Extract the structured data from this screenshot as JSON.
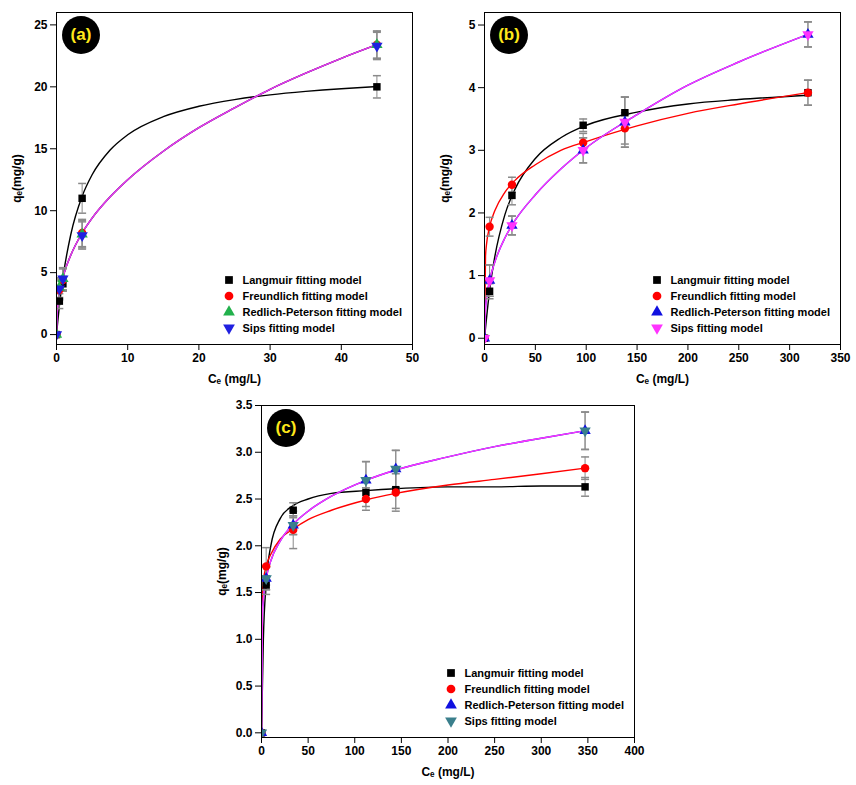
{
  "chart_data": [
    {
      "type": "scatter",
      "title": "(a)",
      "x_label": "Cₑ (mg/L)",
      "y_label": "qₑ(mg/g)",
      "xlim": [
        0,
        50
      ],
      "xticks": [
        0,
        10,
        20,
        30,
        40,
        50
      ],
      "ylim": [
        -0.8,
        26
      ],
      "yticks": [
        0,
        5,
        10,
        15,
        20,
        25
      ],
      "legend": "lower right",
      "series": [
        {
          "name": "Langmuir fitting model",
          "color": "#000000",
          "marker": "square",
          "x": [
            0,
            0.4,
            0.9,
            3.6,
            45
          ],
          "values": [
            0,
            2.7,
            4.1,
            11.0,
            20.0
          ],
          "error": [
            0,
            0.6,
            0.6,
            1.2,
            0.9
          ],
          "curve": {
            "color": "#000000",
            "x": [
              0,
              0.5,
              1,
              2,
              3.6,
              5,
              7.5,
              10,
              15,
              20,
              25,
              30,
              35,
              40,
              45
            ],
            "values": [
              0,
              2.8,
              4.96,
              8.06,
              11.16,
              12.9,
              14.88,
              16.13,
              17.59,
              18.43,
              18.97,
              19.35,
              19.63,
              19.85,
              20.02
            ]
          }
        },
        {
          "name": "Freundlich fitting model",
          "color": "#ff0000",
          "marker": "circle",
          "x": [
            0,
            0.4,
            0.9,
            3.6,
            45
          ],
          "values": [
            0,
            3.6,
            4.4,
            8.2,
            23.4
          ],
          "error": [
            0,
            0.8,
            0.9,
            1.1,
            1.1
          ],
          "curve": {
            "color": "#ff0000",
            "x": [
              0,
              0.1,
              0.5,
              1,
              2,
              3.6,
              5,
              7.5,
              10,
              15,
              20,
              25,
              30,
              35,
              40,
              45
            ],
            "values": [
              0,
              1.86,
              3.62,
              4.82,
              6.4,
              8.2,
              9.4,
              11.1,
              12.5,
              14.8,
              16.7,
              18.3,
              19.8,
              21.1,
              22.3,
              23.4
            ]
          }
        },
        {
          "name": "Redlich-Peterson fitting model",
          "color": "#22b14c",
          "marker": "triangle",
          "x": [
            0,
            0.4,
            0.9,
            3.6,
            45
          ],
          "values": [
            0,
            3.8,
            4.5,
            8.1,
            23.4
          ],
          "error": [
            0,
            0.8,
            0.9,
            1.1,
            1.1
          ],
          "curve": {
            "color": "#2020e0",
            "x": [
              0,
              0.1,
              0.5,
              1,
              2,
              3.6,
              5,
              7.5,
              10,
              15,
              20,
              25,
              30,
              35,
              40,
              45
            ],
            "values": [
              0,
              1.86,
              3.62,
              4.82,
              6.4,
              8.2,
              9.4,
              11.1,
              12.5,
              14.8,
              16.7,
              18.3,
              19.8,
              21.1,
              22.3,
              23.4
            ]
          }
        },
        {
          "name": "Sips fitting model",
          "color": "#2020e0",
          "marker": "triangle-down",
          "x": [
            0,
            0.4,
            0.9,
            3.6,
            45
          ],
          "values": [
            0,
            3.7,
            4.5,
            8.0,
            23.3
          ],
          "error": [
            0,
            0.8,
            0.9,
            1.1,
            1.1
          ],
          "curve": {
            "color": "#e83de8",
            "x": [
              0,
              0.1,
              0.5,
              1,
              2,
              3.6,
              5,
              7.5,
              10,
              15,
              20,
              25,
              30,
              35,
              40,
              45
            ],
            "values": [
              0,
              1.86,
              3.62,
              4.82,
              6.4,
              8.2,
              9.4,
              11.1,
              12.5,
              14.8,
              16.7,
              18.3,
              19.8,
              21.1,
              22.3,
              23.4
            ]
          }
        }
      ]
    },
    {
      "type": "scatter",
      "title": "(b)",
      "x_label": "Cₑ (mg/L)",
      "y_label": "qₑ(mg/g)",
      "xlim": [
        0,
        350
      ],
      "xticks": [
        0,
        50,
        100,
        150,
        200,
        250,
        300,
        350
      ],
      "ylim": [
        -0.1,
        5.2
      ],
      "yticks": [
        0,
        1,
        2,
        3,
        4,
        5
      ],
      "legend": "lower right",
      "series": [
        {
          "name": "Langmuir fitting model",
          "color": "#000000",
          "marker": "square",
          "x": [
            0,
            5,
            27,
            97,
            138,
            318
          ],
          "values": [
            0,
            0.75,
            2.28,
            3.4,
            3.6,
            3.92
          ],
          "error": [
            0,
            0.12,
            0.15,
            0.1,
            0.25,
            0.2
          ],
          "curve": {
            "color": "#000000",
            "x": [
              0,
              5,
              10,
              20,
              30,
              50,
              75,
              100,
              150,
              200,
              250,
              318
            ],
            "values": [
              0,
              0.76,
              1.29,
              1.97,
              2.38,
              2.87,
              3.2,
              3.4,
              3.61,
              3.74,
              3.81,
              3.88
            ]
          }
        },
        {
          "name": "Freundlich fitting model",
          "color": "#ff0000",
          "marker": "circle",
          "x": [
            0,
            5,
            27,
            97,
            138,
            318
          ],
          "values": [
            0,
            1.78,
            2.45,
            3.12,
            3.35,
            3.92
          ],
          "error": [
            0,
            0.15,
            0.12,
            0.15,
            0.25,
            0.2
          ],
          "curve": {
            "color": "#ff0000",
            "x": [
              0,
              1,
              2,
              5,
              10,
              20,
              30,
              50,
              75,
              100,
              150,
              200,
              250,
              318
            ],
            "values": [
              0,
              1.31,
              1.5,
              1.78,
              2.03,
              2.33,
              2.52,
              2.77,
              3.0,
              3.14,
              3.39,
              3.59,
              3.74,
              3.92
            ]
          }
        },
        {
          "name": "Redlich-Peterson fitting model",
          "color": "#1010e0",
          "marker": "triangle",
          "x": [
            0,
            5,
            27,
            97,
            138,
            318
          ],
          "values": [
            0,
            0.92,
            1.8,
            3.0,
            3.45,
            4.85
          ],
          "error": [
            0,
            0.25,
            0.15,
            0.2,
            0.4,
            0.2
          ],
          "curve": {
            "color": "#1010e0",
            "x": [
              0,
              1,
              2,
              5,
              10,
              20,
              30,
              50,
              75,
              100,
              150,
              200,
              250,
              318
            ],
            "values": [
              0,
              0.48,
              0.64,
              0.92,
              1.21,
              1.6,
              1.88,
              2.29,
              2.7,
              3.04,
              3.57,
              4.04,
              4.41,
              4.85
            ]
          }
        },
        {
          "name": "Sips fitting model",
          "color": "#ff33ff",
          "marker": "triangle-down",
          "x": [
            0,
            5,
            27,
            97,
            138,
            318
          ],
          "values": [
            0,
            0.92,
            1.8,
            3.0,
            3.45,
            4.85
          ],
          "error": [
            0,
            0.25,
            0.15,
            0.2,
            0.4,
            0.2
          ],
          "curve": {
            "color": "#ff33ff",
            "x": [
              0,
              1,
              2,
              5,
              10,
              20,
              30,
              50,
              75,
              100,
              150,
              200,
              250,
              318
            ],
            "values": [
              0,
              0.48,
              0.64,
              0.92,
              1.21,
              1.6,
              1.88,
              2.29,
              2.7,
              3.04,
              3.57,
              4.04,
              4.41,
              4.85
            ]
          }
        }
      ]
    },
    {
      "type": "scatter",
      "title": "(c)",
      "x_label": "Cₑ (mg/L)",
      "y_label": "qₑ(mg/g)",
      "xlim": [
        0,
        400
      ],
      "xticks": [
        0,
        50,
        100,
        150,
        200,
        250,
        300,
        350,
        400
      ],
      "ylim": [
        -0.05,
        3.5
      ],
      "yticks": [
        {
          "value": 0,
          "label": "0.0"
        },
        0.5,
        {
          "value": 1,
          "label": "1.0"
        },
        1.5,
        {
          "value": 2,
          "label": "2.0"
        },
        2.5,
        {
          "value": 3,
          "label": "3.0"
        },
        3.5
      ],
      "legend": "lower right",
      "series": [
        {
          "name": "Langmuir fitting model",
          "color": "#000000",
          "marker": "square",
          "x": [
            0,
            5,
            34,
            112,
            144,
            347
          ],
          "values": [
            0,
            1.58,
            2.38,
            2.57,
            2.6,
            2.63
          ],
          "error": [
            0,
            0.1,
            0.08,
            0.15,
            0.2,
            0.1
          ],
          "curve": {
            "color": "#000000",
            "x": [
              0,
              2,
              5,
              10,
              20,
              34,
              50,
              75,
              112,
              144,
              200,
              250,
              300,
              347
            ],
            "values": [
              0,
              1.0,
              1.6,
              2.0,
              2.29,
              2.43,
              2.5,
              2.56,
              2.59,
              2.61,
              2.63,
              2.63,
              2.64,
              2.64
            ]
          }
        },
        {
          "name": "Freundlich fitting model",
          "color": "#ff0000",
          "marker": "circle",
          "x": [
            0,
            5,
            34,
            112,
            144,
            347
          ],
          "values": [
            0,
            1.78,
            2.17,
            2.5,
            2.57,
            2.83
          ],
          "error": [
            0,
            0.2,
            0.2,
            0.12,
            0.2,
            0.12
          ],
          "curve": {
            "color": "#ff0000",
            "x": [
              0,
              1,
              2,
              5,
              10,
              20,
              34,
              50,
              75,
              112,
              144,
              200,
              250,
              300,
              347
            ],
            "values": [
              0,
              1.49,
              1.62,
              1.78,
              1.91,
              2.07,
              2.18,
              2.28,
              2.38,
              2.49,
              2.56,
              2.65,
              2.71,
              2.77,
              2.83
            ]
          }
        },
        {
          "name": "Redlich-Peterson fitting model",
          "color": "#1010e0",
          "marker": "triangle",
          "x": [
            0,
            5,
            34,
            112,
            144,
            347
          ],
          "values": [
            0,
            1.65,
            2.22,
            2.7,
            2.82,
            3.23
          ],
          "error": [
            0,
            0.12,
            0.1,
            0.2,
            0.2,
            0.2
          ],
          "curve": {
            "color": "#1010e0",
            "x": [
              0,
              1,
              2,
              5,
              10,
              20,
              34,
              50,
              75,
              112,
              144,
              200,
              250,
              300,
              347
            ],
            "values": [
              0,
              1.28,
              1.43,
              1.65,
              1.84,
              2.05,
              2.23,
              2.37,
              2.53,
              2.7,
              2.81,
              2.95,
              3.06,
              3.15,
              3.23
            ]
          }
        },
        {
          "name": "Sips fitting model",
          "color": "#3a7f8c",
          "marker": "triangle-down",
          "x": [
            0,
            5,
            34,
            112,
            144,
            347
          ],
          "values": [
            0,
            1.65,
            2.22,
            2.7,
            2.82,
            3.23
          ],
          "error": [
            0,
            0.12,
            0.1,
            0.2,
            0.2,
            0.2
          ],
          "curve": {
            "color": "#ff33ff",
            "x": [
              0,
              1,
              2,
              5,
              10,
              20,
              34,
              50,
              75,
              112,
              144,
              200,
              250,
              300,
              347
            ],
            "values": [
              0,
              1.28,
              1.43,
              1.65,
              1.84,
              2.05,
              2.23,
              2.37,
              2.53,
              2.7,
              2.81,
              2.95,
              3.06,
              3.15,
              3.23
            ]
          }
        }
      ]
    }
  ]
}
